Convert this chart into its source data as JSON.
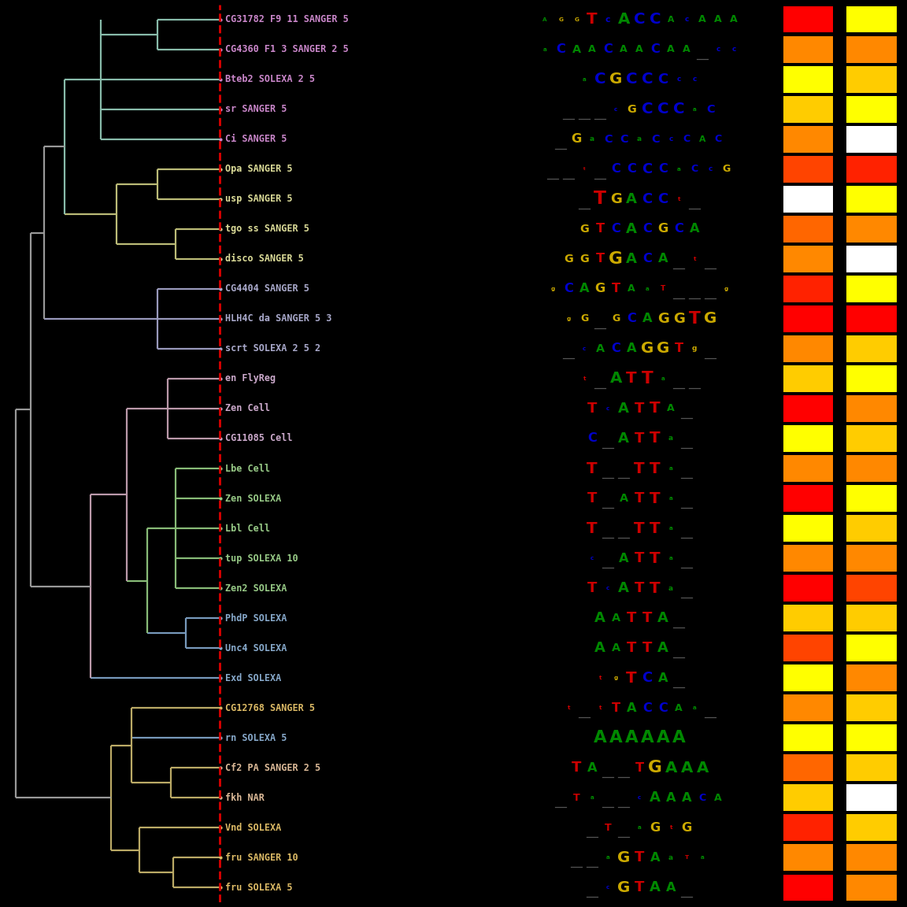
{
  "n_taxa": 30,
  "background": "#000000",
  "labels": [
    "CG31782 F9 11 SANGER 5",
    "CG4360 F1 3 SANGER 2 5",
    "Bteb2 SOLEXA 2 5",
    "sr SANGER 5",
    "Ci SANGER 5",
    "Opa SANGER 5",
    "usp SANGER 5",
    "tgo ss SANGER 5",
    "disco SANGER 5",
    "CG4404 SANGER 5",
    "HLH4C da SANGER 5 3",
    "scrt SOLEXA 2 5 2",
    "en FlyReg",
    "Zen Cell",
    "CG11085 Cell",
    "Lbe Cell",
    "Zen SOLEXA",
    "Lbl Cell",
    "tup SOLEXA 10",
    "Zen2 SOLEXA",
    "PhdP SOLEXA",
    "Unc4 SOLEXA",
    "Exd SOLEXA",
    "CG12768 SANGER 5",
    "rn SOLEXA 5",
    "Cf2 PA SANGER 2 5",
    "fkh NAR",
    "Vnd SOLEXA",
    "fru SANGER 10",
    "fru SOLEXA 5"
  ],
  "label_colors": [
    "#CC88CC",
    "#CC88CC",
    "#CC88CC",
    "#CC88CC",
    "#CC88CC",
    "#DDDD99",
    "#DDDD99",
    "#DDDD99",
    "#DDDD99",
    "#AAAACC",
    "#AAAACC",
    "#AAAACC",
    "#CCAACC",
    "#CCAACC",
    "#CCAACC",
    "#99CC88",
    "#99CC88",
    "#99CC88",
    "#99CC88",
    "#99CC88",
    "#88AACC",
    "#88AACC",
    "#88AACC",
    "#DDBB66",
    "#88AACC",
    "#DDBB99",
    "#DDBB99",
    "#DDBB66",
    "#DDBB66",
    "#DDBB66"
  ],
  "heatmap_col1": [
    "#FF0000",
    "#FF8800",
    "#FFFF00",
    "#FFCC00",
    "#FF8800",
    "#FF4400",
    "#FFFFFF",
    "#FF6600",
    "#FF8800",
    "#FF2200",
    "#FF0000",
    "#FF8800",
    "#FFCC00",
    "#FF0000",
    "#FFFF00",
    "#FF8800",
    "#FF0000",
    "#FFFF00",
    "#FF8800",
    "#FF0000",
    "#FFCC00",
    "#FF4400",
    "#FFFF00",
    "#FF8800",
    "#FFFF00",
    "#FF6600",
    "#FFCC00",
    "#FF2200",
    "#FF8800",
    "#FF0000"
  ],
  "heatmap_col2": [
    "#FFFF00",
    "#FF8800",
    "#FFCC00",
    "#FFFF00",
    "#FFFFFF",
    "#FF2200",
    "#FFFF00",
    "#FF8800",
    "#FFFFFF",
    "#FFFF00",
    "#FF0000",
    "#FFCC00",
    "#FFFF00",
    "#FF8800",
    "#FFCC00",
    "#FF8800",
    "#FFFF00",
    "#FFCC00",
    "#FF8800",
    "#FF4400",
    "#FFCC00",
    "#FFFF00",
    "#FF8800",
    "#FFCC00",
    "#FFFF00",
    "#FFCC00",
    "#FFFFFF",
    "#FFCC00",
    "#FF8800",
    "#FF8800"
  ],
  "logo_rows": [
    [
      [
        "A",
        "#008800",
        8
      ],
      [
        "G",
        "#CCAA00",
        8
      ],
      [
        "G",
        "#CCAA00",
        8
      ],
      [
        "T",
        "#CC0000",
        22
      ],
      [
        "c",
        "#0000CC",
        12
      ],
      [
        "A",
        "#008800",
        22
      ],
      [
        "C",
        "#0000CC",
        22
      ],
      [
        "C",
        "#0000CC",
        22
      ],
      [
        "A",
        "#008800",
        12
      ],
      [
        "c",
        "#0000CC",
        10
      ],
      [
        "A",
        "#008800",
        14
      ],
      [
        "A",
        "#008800",
        14
      ],
      [
        "A",
        "#008800",
        14
      ]
    ],
    [
      [
        "a",
        "#008800",
        8
      ],
      [
        "C",
        "#0000CC",
        18
      ],
      [
        "A",
        "#008800",
        16
      ],
      [
        "A",
        "#008800",
        14
      ],
      [
        "C",
        "#0000CC",
        18
      ],
      [
        "A",
        "#008800",
        14
      ],
      [
        "A",
        "#008800",
        14
      ],
      [
        "C",
        "#0000CC",
        18
      ],
      [
        "A",
        "#008800",
        14
      ],
      [
        "A",
        "#008800",
        14
      ],
      [
        "_",
        "#555555",
        5
      ],
      [
        "c",
        "#0000CC",
        10
      ],
      [
        "c",
        "#0000CC",
        10
      ]
    ],
    [
      [
        "a",
        "#008800",
        8
      ],
      [
        "C",
        "#0000CC",
        22
      ],
      [
        "G",
        "#CCAA00",
        22
      ],
      [
        "C",
        "#0000CC",
        22
      ],
      [
        "C",
        "#0000CC",
        22
      ],
      [
        "C",
        "#0000CC",
        20
      ],
      [
        "c",
        "#0000CC",
        10
      ],
      [
        "c",
        "#0000CC",
        10
      ]
    ],
    [
      [
        "_",
        "#555555",
        5
      ],
      [
        "_",
        "#555555",
        5
      ],
      [
        "_",
        "#555555",
        5
      ],
      [
        "c",
        "#0000CC",
        8
      ],
      [
        "G",
        "#CCAA00",
        16
      ],
      [
        "C",
        "#0000CC",
        22
      ],
      [
        "C",
        "#0000CC",
        22
      ],
      [
        "C",
        "#0000CC",
        22
      ],
      [
        "a",
        "#008800",
        8
      ],
      [
        "C",
        "#0000CC",
        16
      ]
    ],
    [
      [
        "_",
        "#555555",
        5
      ],
      [
        "G",
        "#CCAA00",
        18
      ],
      [
        "a",
        "#008800",
        10
      ],
      [
        "C",
        "#0000CC",
        16
      ],
      [
        "C",
        "#0000CC",
        16
      ],
      [
        "a",
        "#008800",
        10
      ],
      [
        "C",
        "#0000CC",
        16
      ],
      [
        "c",
        "#0000CC",
        10
      ],
      [
        "C",
        "#0000CC",
        14
      ],
      [
        "A",
        "#008800",
        12
      ],
      [
        "C",
        "#0000CC",
        14
      ]
    ],
    [
      [
        "_",
        "#555555",
        5
      ],
      [
        "_",
        "#555555",
        5
      ],
      [
        "t",
        "#CC0000",
        6
      ],
      [
        "_",
        "#555555",
        5
      ],
      [
        "C",
        "#0000CC",
        18
      ],
      [
        "C",
        "#0000CC",
        18
      ],
      [
        "C",
        "#0000CC",
        20
      ],
      [
        "C",
        "#0000CC",
        18
      ],
      [
        "a",
        "#008800",
        8
      ],
      [
        "C",
        "#0000CC",
        14
      ],
      [
        "c",
        "#0000CC",
        10
      ],
      [
        "G",
        "#CCAA00",
        14
      ]
    ],
    [
      [
        "_",
        "#555555",
        5
      ],
      [
        "T",
        "#CC0000",
        26
      ],
      [
        "G",
        "#CCAA00",
        20
      ],
      [
        "A",
        "#008800",
        20
      ],
      [
        "C",
        "#0000CC",
        20
      ],
      [
        "C",
        "#0000CC",
        20
      ],
      [
        "t",
        "#CC0000",
        8
      ],
      [
        "_",
        "#555555",
        5
      ]
    ],
    [
      [
        "G",
        "#CCAA00",
        16
      ],
      [
        "T",
        "#CC0000",
        18
      ],
      [
        "C",
        "#0000CC",
        18
      ],
      [
        "A",
        "#008800",
        20
      ],
      [
        "C",
        "#0000CC",
        18
      ],
      [
        "G",
        "#CCAA00",
        18
      ],
      [
        "C",
        "#0000CC",
        18
      ],
      [
        "A",
        "#008800",
        18
      ]
    ],
    [
      [
        "G",
        "#CCAA00",
        16
      ],
      [
        "G",
        "#CCAA00",
        16
      ],
      [
        "T",
        "#CC0000",
        18
      ],
      [
        "G",
        "#CCAA00",
        24
      ],
      [
        "A",
        "#008800",
        20
      ],
      [
        "C",
        "#0000CC",
        18
      ],
      [
        "A",
        "#008800",
        18
      ],
      [
        "_",
        "#555555",
        5
      ],
      [
        "t",
        "#CC0000",
        8
      ],
      [
        "_",
        "#555555",
        5
      ]
    ],
    [
      [
        "g",
        "#CCAA00",
        8
      ],
      [
        "C",
        "#0000CC",
        18
      ],
      [
        "A",
        "#008800",
        18
      ],
      [
        "G",
        "#CCAA00",
        18
      ],
      [
        "T",
        "#CC0000",
        18
      ],
      [
        "A",
        "#008800",
        14
      ],
      [
        "a",
        "#008800",
        8
      ],
      [
        "T",
        "#CC0000",
        10
      ],
      [
        "_",
        "#555555",
        5
      ],
      [
        "_",
        "#555555",
        5
      ],
      [
        "_",
        "#555555",
        5
      ],
      [
        "g",
        "#CCAA00",
        8
      ]
    ],
    [
      [
        "g",
        "#CCAA00",
        8
      ],
      [
        "G",
        "#CCAA00",
        14
      ],
      [
        "_",
        "#555555",
        5
      ],
      [
        "G",
        "#CCAA00",
        14
      ],
      [
        "C",
        "#0000CC",
        18
      ],
      [
        "A",
        "#008800",
        18
      ],
      [
        "G",
        "#CCAA00",
        20
      ],
      [
        "G",
        "#CCAA00",
        20
      ],
      [
        "T",
        "#CC0000",
        24
      ],
      [
        "G",
        "#CCAA00",
        22
      ]
    ],
    [
      [
        "_",
        "#555555",
        5
      ],
      [
        "c",
        "#0000CC",
        8
      ],
      [
        "A",
        "#008800",
        16
      ],
      [
        "C",
        "#0000CC",
        18
      ],
      [
        "A",
        "#008800",
        18
      ],
      [
        "G",
        "#CCAA00",
        22
      ],
      [
        "G",
        "#CCAA00",
        22
      ],
      [
        "T",
        "#CC0000",
        18
      ],
      [
        "g",
        "#CCAA00",
        10
      ],
      [
        "_",
        "#555555",
        5
      ]
    ],
    [
      [
        "t",
        "#CC0000",
        8
      ],
      [
        "_",
        "#555555",
        5
      ],
      [
        "A",
        "#008800",
        22
      ],
      [
        "T",
        "#CC0000",
        22
      ],
      [
        "T",
        "#CC0000",
        24
      ],
      [
        "a",
        "#008800",
        8
      ],
      [
        "_",
        "#555555",
        5
      ],
      [
        "_",
        "#555555",
        5
      ]
    ],
    [
      [
        "T",
        "#CC0000",
        20
      ],
      [
        "c",
        "#0000CC",
        8
      ],
      [
        "A",
        "#008800",
        20
      ],
      [
        "T",
        "#CC0000",
        20
      ],
      [
        "T",
        "#CC0000",
        22
      ],
      [
        "A",
        "#008800",
        14
      ],
      [
        "_",
        "#555555",
        5
      ]
    ],
    [
      [
        "C",
        "#0000CC",
        18
      ],
      [
        "_",
        "#555555",
        5
      ],
      [
        "A",
        "#008800",
        20
      ],
      [
        "T",
        "#CC0000",
        20
      ],
      [
        "T",
        "#CC0000",
        22
      ],
      [
        "a",
        "#008800",
        10
      ],
      [
        "_",
        "#555555",
        5
      ]
    ],
    [
      [
        "T",
        "#CC0000",
        22
      ],
      [
        "_",
        "#555555",
        5
      ],
      [
        "_",
        "#555555",
        5
      ],
      [
        "T",
        "#CC0000",
        22
      ],
      [
        "T",
        "#CC0000",
        22
      ],
      [
        "a",
        "#008800",
        8
      ],
      [
        "_",
        "#555555",
        5
      ]
    ],
    [
      [
        "T",
        "#CC0000",
        20
      ],
      [
        "_",
        "#555555",
        5
      ],
      [
        "A",
        "#008800",
        16
      ],
      [
        "T",
        "#CC0000",
        20
      ],
      [
        "T",
        "#CC0000",
        22
      ],
      [
        "a",
        "#008800",
        8
      ],
      [
        "_",
        "#555555",
        5
      ]
    ],
    [
      [
        "T",
        "#CC0000",
        22
      ],
      [
        "_",
        "#555555",
        5
      ],
      [
        "_",
        "#555555",
        5
      ],
      [
        "T",
        "#CC0000",
        22
      ],
      [
        "T",
        "#CC0000",
        22
      ],
      [
        "a",
        "#008800",
        8
      ],
      [
        "_",
        "#555555",
        5
      ]
    ],
    [
      [
        "c",
        "#0000CC",
        8
      ],
      [
        "_",
        "#555555",
        5
      ],
      [
        "A",
        "#008800",
        18
      ],
      [
        "T",
        "#CC0000",
        20
      ],
      [
        "T",
        "#CC0000",
        22
      ],
      [
        "a",
        "#008800",
        8
      ],
      [
        "_",
        "#555555",
        5
      ]
    ],
    [
      [
        "T",
        "#CC0000",
        20
      ],
      [
        "c",
        "#0000CC",
        8
      ],
      [
        "A",
        "#008800",
        20
      ],
      [
        "T",
        "#CC0000",
        20
      ],
      [
        "T",
        "#CC0000",
        22
      ],
      [
        "a",
        "#008800",
        10
      ],
      [
        "_",
        "#555555",
        5
      ]
    ],
    [
      [
        "A",
        "#008800",
        20
      ],
      [
        "A",
        "#008800",
        16
      ],
      [
        "T",
        "#CC0000",
        20
      ],
      [
        "T",
        "#CC0000",
        20
      ],
      [
        "A",
        "#008800",
        20
      ],
      [
        "_",
        "#555555",
        5
      ]
    ],
    [
      [
        "A",
        "#008800",
        20
      ],
      [
        "A",
        "#008800",
        16
      ],
      [
        "T",
        "#CC0000",
        20
      ],
      [
        "T",
        "#CC0000",
        20
      ],
      [
        "A",
        "#008800",
        20
      ],
      [
        "_",
        "#555555",
        5
      ]
    ],
    [
      [
        "t",
        "#CC0000",
        8
      ],
      [
        "g",
        "#CCAA00",
        8
      ],
      [
        "T",
        "#CC0000",
        22
      ],
      [
        "C",
        "#0000CC",
        20
      ],
      [
        "A",
        "#008800",
        18
      ],
      [
        "_",
        "#555555",
        5
      ]
    ],
    [
      [
        "t",
        "#CC0000",
        8
      ],
      [
        "_",
        "#555555",
        5
      ],
      [
        "t",
        "#CC0000",
        8
      ],
      [
        "T",
        "#CC0000",
        18
      ],
      [
        "A",
        "#008800",
        18
      ],
      [
        "C",
        "#0000CC",
        18
      ],
      [
        "C",
        "#0000CC",
        18
      ],
      [
        "A",
        "#008800",
        14
      ],
      [
        "a",
        "#008800",
        8
      ],
      [
        "_",
        "#555555",
        5
      ]
    ],
    [
      [
        "A",
        "#008800",
        24
      ],
      [
        "A",
        "#008800",
        24
      ],
      [
        "A",
        "#008800",
        24
      ],
      [
        "A",
        "#008800",
        24
      ],
      [
        "A",
        "#008800",
        24
      ],
      [
        "A",
        "#008800",
        24
      ]
    ],
    [
      [
        "T",
        "#CC0000",
        20
      ],
      [
        "A",
        "#008800",
        18
      ],
      [
        "_",
        "#555555",
        5
      ],
      [
        "_",
        "#555555",
        5
      ],
      [
        "T",
        "#CC0000",
        18
      ],
      [
        "G",
        "#CCAA00",
        24
      ],
      [
        "A",
        "#008800",
        22
      ],
      [
        "A",
        "#008800",
        22
      ],
      [
        "A",
        "#008800",
        22
      ]
    ],
    [
      [
        "_",
        "#555555",
        5
      ],
      [
        "T",
        "#CC0000",
        14
      ],
      [
        "a",
        "#008800",
        8
      ],
      [
        "_",
        "#555555",
        5
      ],
      [
        "_",
        "#555555",
        5
      ],
      [
        "c",
        "#0000CC",
        8
      ],
      [
        "A",
        "#008800",
        20
      ],
      [
        "A",
        "#008800",
        18
      ],
      [
        "A",
        "#008800",
        18
      ],
      [
        "C",
        "#0000CC",
        14
      ],
      [
        "A",
        "#008800",
        14
      ]
    ],
    [
      [
        "_",
        "#555555",
        5
      ],
      [
        "T",
        "#CC0000",
        14
      ],
      [
        "_",
        "#555555",
        5
      ],
      [
        "a",
        "#008800",
        8
      ],
      [
        "G",
        "#CCAA00",
        18
      ],
      [
        "t",
        "#CC0000",
        8
      ],
      [
        "G",
        "#CCAA00",
        18
      ]
    ],
    [
      [
        "_",
        "#555555",
        5
      ],
      [
        "_",
        "#555555",
        5
      ],
      [
        "a",
        "#008800",
        8
      ],
      [
        "G",
        "#CCAA00",
        22
      ],
      [
        "T",
        "#CC0000",
        20
      ],
      [
        "A",
        "#008800",
        18
      ],
      [
        "a",
        "#008800",
        10
      ],
      [
        "T",
        "#CC0000",
        8
      ],
      [
        "a",
        "#008800",
        8
      ]
    ],
    [
      [
        "_",
        "#555555",
        5
      ],
      [
        "c",
        "#0000CC",
        8
      ],
      [
        "G",
        "#CCAA00",
        22
      ],
      [
        "T",
        "#CC0000",
        20
      ],
      [
        "A",
        "#008800",
        20
      ],
      [
        "A",
        "#008800",
        18
      ],
      [
        "_",
        "#555555",
        5
      ]
    ]
  ]
}
